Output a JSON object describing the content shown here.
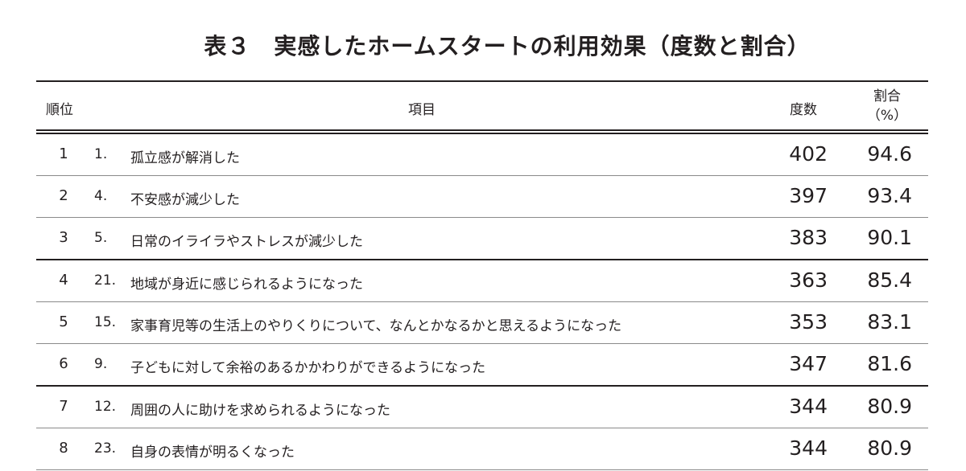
{
  "title": "表３　実感したホームスタートの利用効果（度数と割合）",
  "headers": {
    "rank": "順位",
    "item": "項目",
    "count": "度数",
    "pct_line1": "割合",
    "pct_line2": "（%）"
  },
  "rows": [
    {
      "rank": "1",
      "num": "1.",
      "text": "孤立感が解消した",
      "count": "402",
      "pct": "94.6"
    },
    {
      "rank": "2",
      "num": "4.",
      "text": "不安感が減少した",
      "count": "397",
      "pct": "93.4"
    },
    {
      "rank": "3",
      "num": "5.",
      "text": "日常のイライラやストレスが減少した",
      "count": "383",
      "pct": "90.1"
    },
    {
      "rank": "4",
      "num": "21.",
      "text": "地域が身近に感じられるようになった",
      "count": "363",
      "pct": "85.4"
    },
    {
      "rank": "5",
      "num": "15.",
      "text": "家事育児等の生活上のやりくりについて、なんとかなるかと思えるようになった",
      "count": "353",
      "pct": "83.1"
    },
    {
      "rank": "6",
      "num": "9.",
      "text": "子どもに対して余裕のあるかかわりができるようになった",
      "count": "347",
      "pct": "81.6"
    },
    {
      "rank": "7",
      "num": "12.",
      "text": "周囲の人に助けを求められるようになった",
      "count": "344",
      "pct": "80.9"
    },
    {
      "rank": "8",
      "num": "23.",
      "text": "自身の表情が明るくなった",
      "count": "344",
      "pct": "80.9"
    }
  ]
}
